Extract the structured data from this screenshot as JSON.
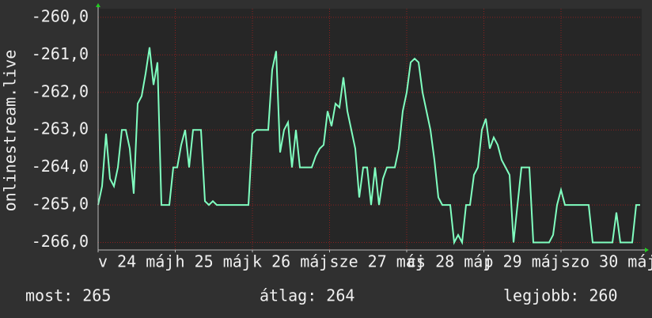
{
  "chart_data": {
    "type": "line",
    "y_label": "onlinestream.live",
    "ylim": [
      -266.2,
      -259.77
    ],
    "yticks": [
      {
        "value": -260,
        "label": "-260,0"
      },
      {
        "value": -261,
        "label": "-261,0"
      },
      {
        "value": -262,
        "label": "-262,0"
      },
      {
        "value": -263,
        "label": "-263,0"
      },
      {
        "value": -264,
        "label": "-264,0"
      },
      {
        "value": -265,
        "label": "-265,0"
      },
      {
        "value": -266,
        "label": "-266,0"
      }
    ],
    "xlim": [
      0,
      137.4
    ],
    "xticks": [
      {
        "value": 0,
        "label": "v 24 máj"
      },
      {
        "value": 19.5,
        "label": "h 25 máj"
      },
      {
        "value": 39,
        "label": "k 26 máj"
      },
      {
        "value": 58.5,
        "label": "sze 27 máj"
      },
      {
        "value": 78,
        "label": "cs 28 máj"
      },
      {
        "value": 97.5,
        "label": "p 29 máj"
      },
      {
        "value": 117,
        "label": "szo 30 máj"
      }
    ],
    "grid": true,
    "color": "#80ffc0",
    "values": [
      -265.0,
      -264.5,
      -263.1,
      -264.3,
      -264.5,
      -264.0,
      -263.0,
      -263.0,
      -263.5,
      -264.7,
      -262.3,
      -262.1,
      -261.5,
      -260.8,
      -261.8,
      -261.2,
      -265.0,
      -265.0,
      -265.0,
      -264.0,
      -264.0,
      -263.4,
      -263.0,
      -264.0,
      -263.0,
      -263.0,
      -263.0,
      -264.9,
      -265.0,
      -264.9,
      -265.0,
      -265.0,
      -265.0,
      -265.0,
      -265.0,
      -265.0,
      -265.0,
      -265.0,
      -265.0,
      -263.1,
      -263.0,
      -263.0,
      -263.0,
      -263.0,
      -261.4,
      -260.9,
      -263.6,
      -263.0,
      -262.8,
      -264.0,
      -263.0,
      -264.0,
      -264.0,
      -264.0,
      -264.0,
      -263.7,
      -263.5,
      -263.4,
      -262.5,
      -262.9,
      -262.3,
      -262.4,
      -261.6,
      -262.5,
      -263.0,
      -263.5,
      -264.8,
      -264.0,
      -264.0,
      -265.0,
      -264.0,
      -265.0,
      -264.3,
      -264.0,
      -264.0,
      -264.0,
      -263.5,
      -262.5,
      -262.0,
      -261.2,
      -261.1,
      -261.2,
      -262.0,
      -262.5,
      -263.0,
      -263.8,
      -264.8,
      -265.0,
      -265.0,
      -265.0,
      -266.0,
      -265.8,
      -266.0,
      -265.0,
      -265.0,
      -264.2,
      -264.0,
      -263.0,
      -262.7,
      -263.5,
      -263.2,
      -263.4,
      -263.8,
      -264.0,
      -264.2,
      -266.0,
      -265.0,
      -264.0,
      -264.0,
      -264.0,
      -266.0,
      -266.0,
      -266.0,
      -266.0,
      -266.0,
      -265.8,
      -265.0,
      -264.6,
      -265.0,
      -265.0,
      -265.0,
      -265.0,
      -265.0,
      -265.0,
      -265.0,
      -266.0,
      -266.0,
      -266.0,
      -266.0,
      -266.0,
      -266.0,
      -265.2,
      -266.0,
      -266.0,
      -266.0,
      -266.0,
      -265.0,
      -265.0
    ],
    "footer": [
      "most: 265",
      "átlag: 264",
      "legjobb: 260"
    ]
  }
}
